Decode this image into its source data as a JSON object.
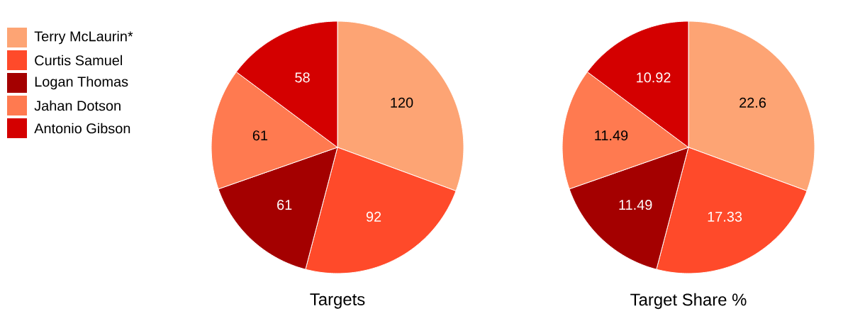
{
  "chart_data": [
    {
      "type": "pie",
      "title": "Targets",
      "categories": [
        "Terry McLaurin*",
        "Curtis Samuel",
        "Logan Thomas",
        "Jahan Dotson",
        "Antonio Gibson"
      ],
      "values": [
        120,
        92,
        61,
        61,
        58
      ],
      "colors": [
        "#fda474",
        "#ff4a2a",
        "#a40000",
        "#ff7a50",
        "#d40000"
      ],
      "data_labels": true,
      "legend": "left"
    },
    {
      "type": "pie",
      "title": "Target Share %",
      "categories": [
        null,
        null,
        null,
        null,
        null
      ],
      "values": [
        22.6,
        17.33,
        11.49,
        11.49,
        10.92
      ],
      "colors": [
        "#fda474",
        "#ff4a2a",
        "#a40000",
        "#ff7a50",
        "#d40000"
      ],
      "data_labels": true
    }
  ]
}
